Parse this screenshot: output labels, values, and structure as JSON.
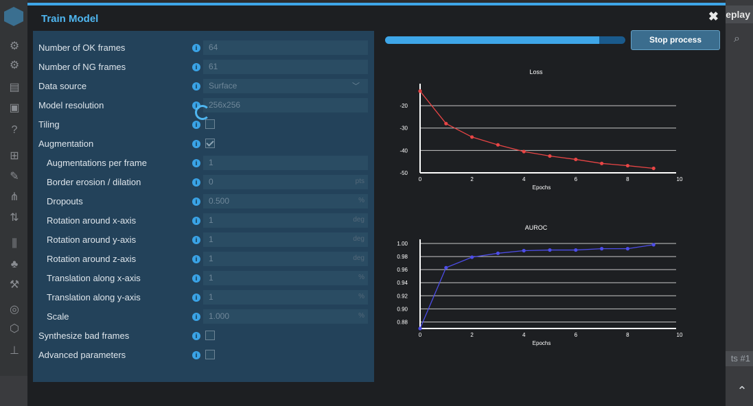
{
  "background": {
    "replay_label": "eplay",
    "tab_label": "ts #1"
  },
  "modal": {
    "title": "Train Model",
    "close_glyph": "✖"
  },
  "form": {
    "rows": [
      {
        "label": "Number of OK frames",
        "type": "input",
        "value": "64",
        "indent": false
      },
      {
        "label": "Number of NG frames",
        "type": "input",
        "value": "61",
        "indent": false
      },
      {
        "label": "Data source",
        "type": "select",
        "value": "Surface",
        "indent": false
      },
      {
        "label": "Model resolution",
        "type": "input",
        "value": "256x256",
        "indent": false
      },
      {
        "label": "Tiling",
        "type": "checkbox",
        "checked": false,
        "indent": false
      },
      {
        "label": "Augmentation",
        "type": "checkbox",
        "checked": true,
        "indent": false
      },
      {
        "label": "Augmentations per frame",
        "type": "input",
        "value": "1",
        "indent": true
      },
      {
        "label": "Border erosion / dilation",
        "type": "input",
        "value": "0",
        "unit": "pts",
        "indent": true
      },
      {
        "label": "Dropouts",
        "type": "input",
        "value": "0.500",
        "unit": "%",
        "indent": true
      },
      {
        "label": "Rotation around x-axis",
        "type": "input",
        "value": "1",
        "unit": "deg",
        "indent": true
      },
      {
        "label": "Rotation around y-axis",
        "type": "input",
        "value": "1",
        "unit": "deg",
        "indent": true
      },
      {
        "label": "Rotation around z-axis",
        "type": "input",
        "value": "1",
        "unit": "deg",
        "indent": true
      },
      {
        "label": "Translation along x-axis",
        "type": "input",
        "value": "1",
        "unit": "%",
        "indent": true
      },
      {
        "label": "Translation along y-axis",
        "type": "input",
        "value": "1",
        "unit": "%",
        "indent": true
      },
      {
        "label": "Scale",
        "type": "input",
        "value": "1.000",
        "unit": "%",
        "indent": true
      },
      {
        "label": "Synthesize bad frames",
        "type": "checkbox",
        "checked": false,
        "indent": false
      },
      {
        "label": "Advanced parameters",
        "type": "checkbox",
        "checked": false,
        "indent": false
      }
    ]
  },
  "progress": {
    "fraction": 0.89
  },
  "stop_button": {
    "label": "Stop process"
  },
  "chart_data": [
    {
      "type": "line",
      "title": "Loss",
      "xlabel": "Epochs",
      "ylabel": "",
      "xlim": [
        0,
        10
      ],
      "ylim": [
        -50,
        -12
      ],
      "xticks": [
        0,
        2,
        4,
        6,
        8,
        10
      ],
      "yticks": [
        -20,
        -30,
        -40,
        -50
      ],
      "ytick_labels": [
        "-20",
        "-30",
        "-40",
        "-50"
      ],
      "x": [
        0,
        1,
        2,
        3,
        4,
        5,
        6,
        7,
        8,
        9
      ],
      "values": [
        -13.5,
        -28,
        -34,
        -37.5,
        -40.5,
        -42.5,
        -44,
        -45.8,
        -46.8,
        -48
      ],
      "color": "#e84545",
      "grid": true
    },
    {
      "type": "line",
      "title": "AUROC",
      "xlabel": "Epochs",
      "ylabel": "",
      "xlim": [
        0,
        10
      ],
      "ylim": [
        0.87,
        1.0
      ],
      "xticks": [
        0,
        2,
        4,
        6,
        8,
        10
      ],
      "yticks": [
        1.0,
        0.98,
        0.96,
        0.94,
        0.92,
        0.9,
        0.88
      ],
      "ytick_labels": [
        "1.00",
        "0.98",
        "0.96",
        "0.94",
        "0.92",
        "0.90",
        "0.88"
      ],
      "x": [
        0,
        1,
        2,
        3,
        4,
        5,
        6,
        7,
        8,
        9
      ],
      "values": [
        0.87,
        0.963,
        0.979,
        0.985,
        0.989,
        0.99,
        0.99,
        0.992,
        0.992,
        0.998
      ],
      "color": "#4d4de8",
      "grid": true
    }
  ]
}
